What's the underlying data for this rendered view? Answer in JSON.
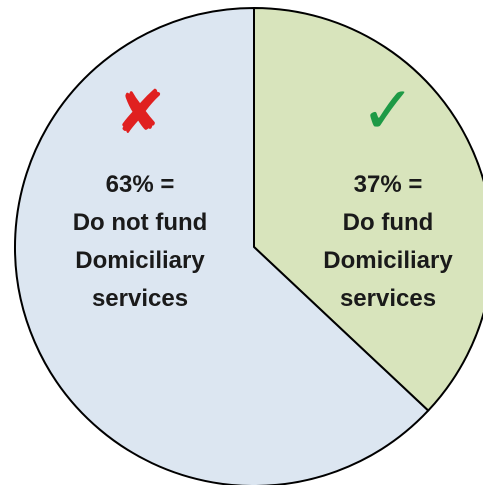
{
  "chart_data": {
    "type": "pie",
    "slices": [
      {
        "value": 37,
        "percent_label": "37% =",
        "label_lines": [
          "Do fund",
          "Domiciliary",
          "services"
        ],
        "color": "#d8e4bc",
        "icon": "check-icon",
        "icon_glyph": "✓",
        "icon_color": "#1e9a46"
      },
      {
        "value": 63,
        "percent_label": "63% =",
        "label_lines": [
          "Do not fund",
          "Domiciliary",
          "services"
        ],
        "color": "#dce6f1",
        "icon": "cross-icon",
        "icon_glyph": "✘",
        "icon_color": "#e02020"
      }
    ],
    "start_angle_deg": 0,
    "direction": "clockwise",
    "border_color": "#000000"
  }
}
